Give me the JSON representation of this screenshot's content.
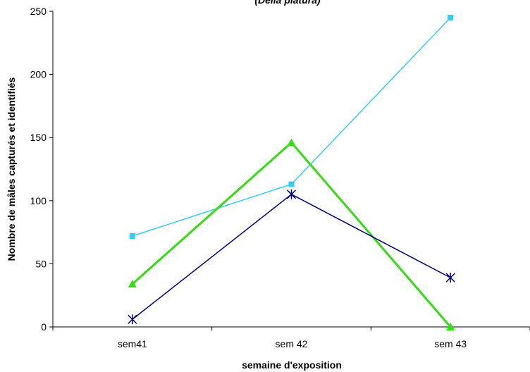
{
  "chart_data": {
    "type": "line",
    "title": "(Delia platura)",
    "xlabel": "semaine d'exposition",
    "ylabel": "Nombre de mâles capturés et identifiés",
    "categories": [
      "sem41",
      "sem 42",
      "sem 43"
    ],
    "ylim": [
      0,
      250
    ],
    "yticks": [
      0,
      50,
      100,
      150,
      200,
      250
    ],
    "grid": false,
    "legend": "none",
    "series": [
      {
        "values": [
          72,
          113,
          245
        ],
        "color": "#33CCFF",
        "marker": "square",
        "line_weight": "thin"
      },
      {
        "values": [
          34,
          146,
          0
        ],
        "color": "#33DD11",
        "marker": "triangle",
        "line_weight": "thick"
      },
      {
        "values": [
          6,
          105,
          39
        ],
        "color": "#000080",
        "marker": "asterisk",
        "line_weight": "thin"
      }
    ]
  }
}
